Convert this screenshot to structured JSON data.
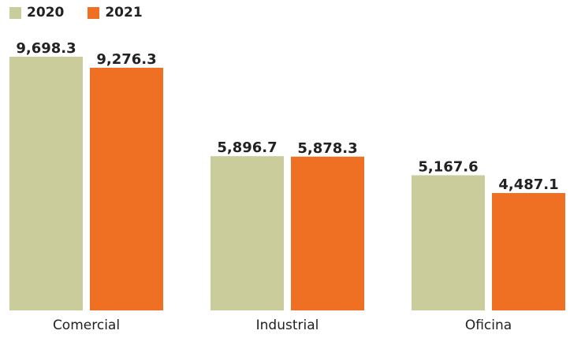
{
  "chart_data": {
    "type": "bar",
    "categories": [
      "Comercial",
      "Industrial",
      "Oficina"
    ],
    "series": [
      {
        "name": "2020",
        "color": "#cbcc9b",
        "values": [
          9698.3,
          5896.7,
          5167.6
        ],
        "labels": [
          "9,698.3",
          "5,896.7",
          "5,167.6"
        ]
      },
      {
        "name": "2021",
        "color": "#f07023",
        "values": [
          9276.3,
          5878.3,
          4487.1
        ],
        "labels": [
          "9,276.3",
          "5,878.3",
          "4,487.1"
        ]
      }
    ],
    "title": "",
    "xlabel": "",
    "ylabel": "",
    "ylim": [
      0,
      10000
    ],
    "legend": "top-left",
    "grid": false
  }
}
